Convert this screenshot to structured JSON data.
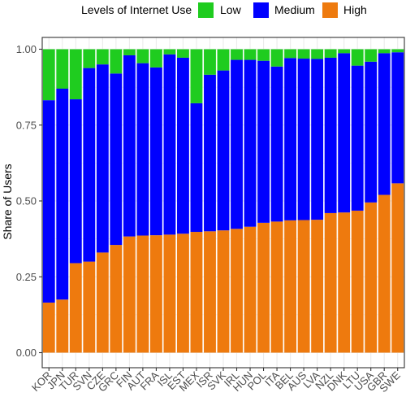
{
  "chart_data": {
    "type": "bar",
    "stacked": true,
    "ylabel": "Share of Users",
    "xlabel": "",
    "ylim": [
      0,
      1
    ],
    "yticks": [
      "0.00",
      "0.25",
      "0.50",
      "0.75",
      "1.00"
    ],
    "legend": {
      "title": "Levels of Internet Use",
      "position": "top",
      "entries": [
        "Low",
        "Medium",
        "High"
      ]
    },
    "colors": {
      "Low": "#1fcc1f",
      "Medium": "#0000ff",
      "High": "#ee7a0e"
    },
    "categories": [
      "KOR",
      "JPN",
      "TUR",
      "SVN",
      "CZE",
      "GRC",
      "FIN",
      "AUT",
      "FRA",
      "ISL",
      "EST",
      "MEX",
      "ISR",
      "SVK",
      "IRL",
      "HUN",
      "POL",
      "ITA",
      "BEL",
      "AUS",
      "LVA",
      "NZL",
      "DNK",
      "LTU",
      "USA",
      "GBR",
      "SWE"
    ],
    "series": [
      {
        "name": "High",
        "values": [
          0.165,
          0.175,
          0.295,
          0.3,
          0.33,
          0.355,
          0.383,
          0.386,
          0.387,
          0.389,
          0.392,
          0.398,
          0.4,
          0.403,
          0.408,
          0.415,
          0.428,
          0.432,
          0.436,
          0.437,
          0.438,
          0.46,
          0.462,
          0.468,
          0.495,
          0.52,
          0.558
        ]
      },
      {
        "name": "Medium",
        "values": [
          0.667,
          0.695,
          0.54,
          0.638,
          0.62,
          0.565,
          0.597,
          0.568,
          0.553,
          0.594,
          0.58,
          0.424,
          0.516,
          0.527,
          0.557,
          0.55,
          0.534,
          0.511,
          0.535,
          0.532,
          0.53,
          0.512,
          0.525,
          0.478,
          0.464,
          0.467,
          0.432
        ]
      },
      {
        "name": "Low",
        "values": [
          0.168,
          0.13,
          0.165,
          0.062,
          0.05,
          0.08,
          0.02,
          0.046,
          0.06,
          0.017,
          0.028,
          0.178,
          0.084,
          0.07,
          0.035,
          0.035,
          0.038,
          0.057,
          0.029,
          0.031,
          0.032,
          0.028,
          0.013,
          0.054,
          0.041,
          0.013,
          0.01
        ]
      }
    ]
  }
}
